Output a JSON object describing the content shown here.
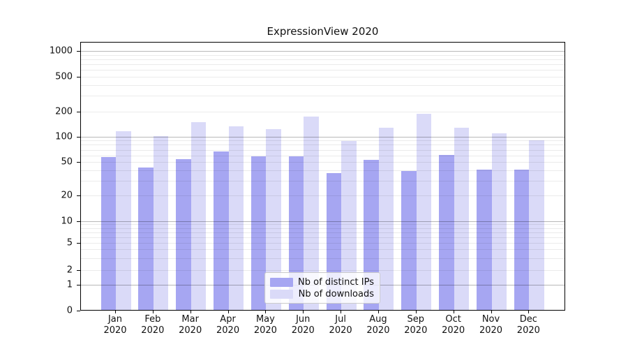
{
  "figure": {
    "title": "ExpressionView 2020",
    "background": "#ffffff"
  },
  "chart_data": {
    "type": "bar",
    "title": "ExpressionView 2020",
    "categories": [
      "Jan 2020",
      "Feb 2020",
      "Mar 2020",
      "Apr 2020",
      "May 2020",
      "Jun 2020",
      "Jul 2020",
      "Aug 2020",
      "Sep 2020",
      "Oct 2020",
      "Nov 2020",
      "Dec 2020"
    ],
    "months": [
      "Jan",
      "Feb",
      "Mar",
      "Apr",
      "May",
      "Jun",
      "Jul",
      "Aug",
      "Sep",
      "Oct",
      "Nov",
      "Dec"
    ],
    "year": "2020",
    "series": [
      {
        "name": "Nb of distinct IPs",
        "color": "#a6a6f2",
        "values": [
          57,
          43,
          54,
          67,
          58,
          59,
          37,
          53,
          39,
          61,
          41,
          41
        ]
      },
      {
        "name": "Nb of downloads",
        "color": "#dadaf8",
        "values": [
          115,
          101,
          148,
          132,
          123,
          172,
          89,
          127,
          188,
          127,
          110,
          91
        ]
      }
    ],
    "xlabel": "",
    "ylabel": "",
    "yaxis": {
      "scale": "symlog",
      "tick_labels": [
        "0",
        "1",
        "2",
        "5",
        "10",
        "20",
        "50",
        "100",
        "200",
        "500",
        "1000"
      ],
      "tick_values": [
        0,
        1,
        2,
        5,
        10,
        20,
        50,
        100,
        200,
        500,
        1000
      ],
      "ylim": [
        0,
        1300
      ],
      "grid": true
    },
    "legend": {
      "entries": [
        "Nb of distinct IPs",
        "Nb of downloads"
      ],
      "position": "lower-center"
    }
  }
}
